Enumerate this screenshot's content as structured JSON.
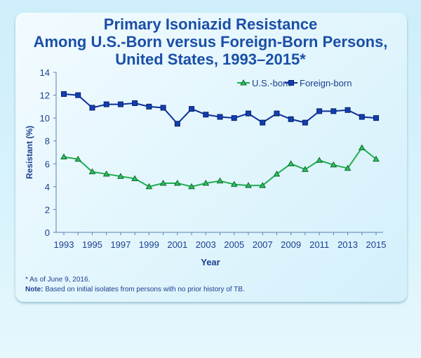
{
  "chart_data": {
    "type": "line",
    "title": [
      "Primary Isoniazid Resistance",
      "Among U.S.-Born versus Foreign-Born Persons,",
      "United States, 1993–2015*"
    ],
    "xlabel": "Year",
    "ylabel": "Resistant (%)",
    "ylim": [
      0,
      14
    ],
    "yticks": [
      0,
      2,
      4,
      6,
      8,
      10,
      12,
      14
    ],
    "xticks": [
      1993,
      1995,
      1997,
      1999,
      2001,
      2003,
      2005,
      2007,
      2009,
      2011,
      2013,
      2015
    ],
    "x": [
      1993,
      1994,
      1995,
      1996,
      1997,
      1998,
      1999,
      2000,
      2001,
      2002,
      2003,
      2004,
      2005,
      2006,
      2007,
      2008,
      2009,
      2010,
      2011,
      2012,
      2013,
      2014,
      2015
    ],
    "grid": false,
    "legend": "top-right",
    "series": [
      {
        "name": "U.S.-born",
        "color": "#1fae4f",
        "marker": "triangle",
        "values": [
          6.6,
          6.4,
          5.3,
          5.1,
          4.9,
          4.7,
          4.0,
          4.3,
          4.3,
          4.0,
          4.3,
          4.5,
          4.2,
          4.1,
          4.1,
          5.1,
          6.0,
          5.5,
          6.3,
          5.9,
          5.6,
          7.4,
          6.4
        ]
      },
      {
        "name": "Foreign-born",
        "color": "#0d2f9a",
        "marker": "square",
        "values": [
          12.1,
          12.0,
          10.9,
          11.2,
          11.2,
          11.3,
          11.0,
          10.9,
          9.5,
          10.8,
          10.3,
          10.1,
          10.0,
          10.4,
          9.6,
          10.4,
          9.9,
          9.6,
          10.6,
          10.6,
          10.7,
          10.1,
          10.0
        ]
      }
    ]
  },
  "footnotes": {
    "asterisk": "*  As of June 9, 2016.",
    "note_label": "Note:",
    "note_text": " Based on initial isolates from persons with no prior history of TB."
  }
}
